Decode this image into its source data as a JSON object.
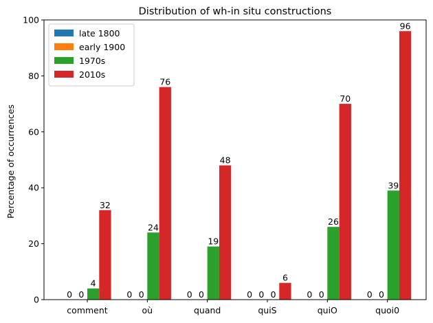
{
  "chart_data": {
    "type": "bar",
    "title": "Distribution of wh-in situ constructions",
    "xlabel": "",
    "ylabel": "Percentage of occurrences",
    "categories": [
      "comment",
      "où",
      "quand",
      "quiS",
      "quiO",
      "quoi0"
    ],
    "series": [
      {
        "name": "late 1800",
        "color": "#1f77b4",
        "values": [
          0,
          0,
          0,
          0,
          0,
          0
        ]
      },
      {
        "name": "early 1900",
        "color": "#ff7f0e",
        "values": [
          0,
          0,
          0,
          0,
          0,
          0
        ]
      },
      {
        "name": "1970s",
        "color": "#2ca02c",
        "values": [
          4,
          24,
          19,
          0,
          26,
          39
        ]
      },
      {
        "name": "2010s",
        "color": "#d62728",
        "values": [
          32,
          76,
          48,
          6,
          70,
          96
        ]
      }
    ],
    "ylim": [
      0,
      100
    ],
    "yticks": [
      0,
      20,
      40,
      60,
      80,
      100
    ],
    "grid": false,
    "legend_position": "top-left"
  }
}
